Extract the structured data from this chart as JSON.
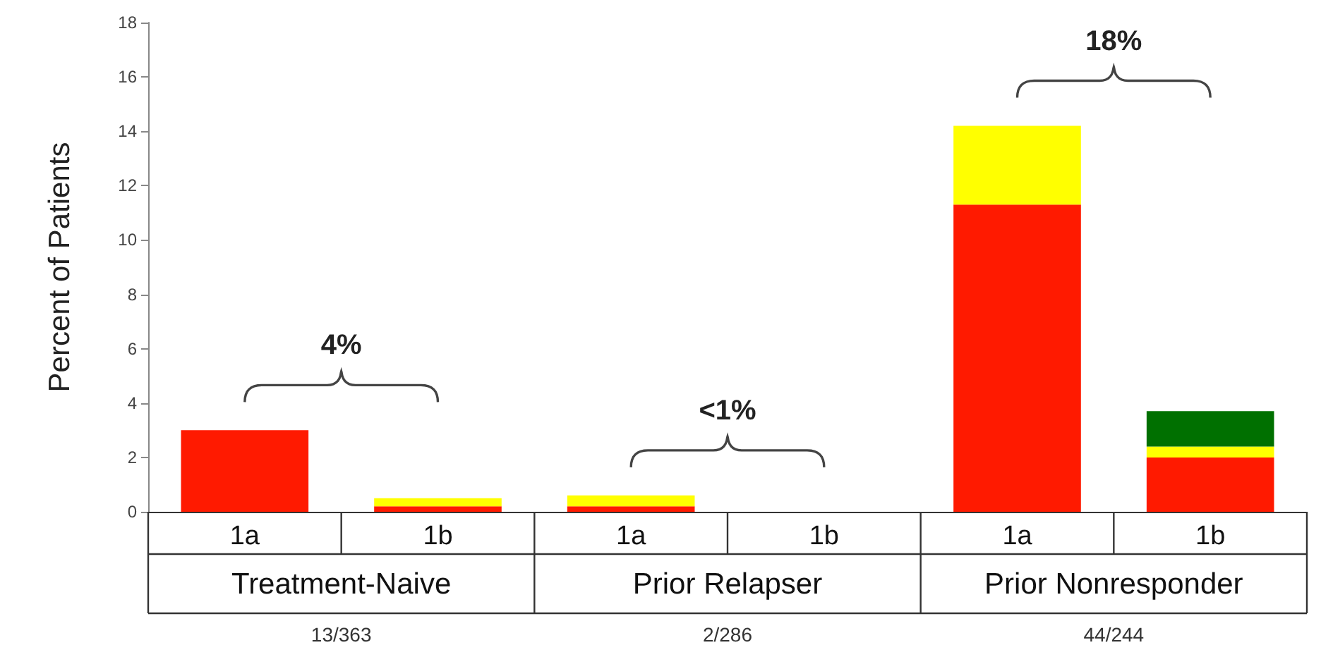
{
  "chart_data": {
    "type": "bar",
    "ylabel": "Percent of Patients",
    "categories": [
      "1a",
      "1b",
      "1a",
      "1b",
      "1a",
      "1b"
    ],
    "stacked": true,
    "series": [
      {
        "color": "#ff1a00",
        "values": [
          3.0,
          0.2,
          0.2,
          null,
          11.3,
          2.0
        ]
      },
      {
        "color": "#ffff00",
        "values": [
          null,
          0.3,
          0.4,
          null,
          2.9,
          0.4
        ]
      },
      {
        "color": "#007000",
        "values": [
          null,
          null,
          null,
          null,
          null,
          1.3
        ]
      }
    ],
    "ylim": [
      0,
      18
    ],
    "yticks": [
      0,
      2,
      4,
      6,
      8,
      10,
      12,
      14,
      16,
      18
    ],
    "annotations": [
      "4%",
      "<1%",
      "18%",
      "Treatment-Naive",
      "Prior Relapser",
      "Prior Nonresponder",
      "13/363",
      "2/286",
      "44/244"
    ]
  }
}
